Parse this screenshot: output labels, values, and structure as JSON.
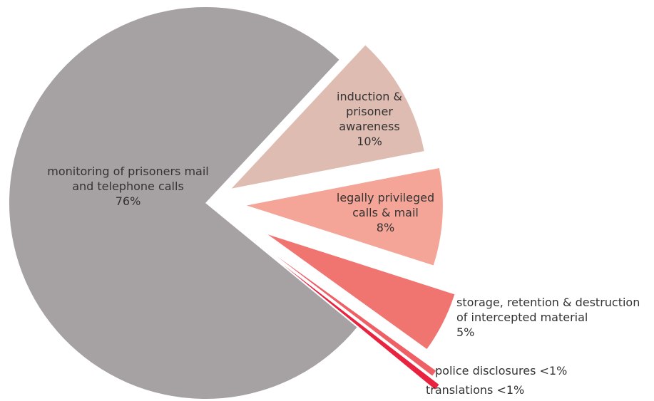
{
  "chart_data": {
    "type": "pie",
    "categories": [
      "monitoring of prisoners mail and telephone calls",
      "induction & prisoner awareness",
      "legally privileged calls & mail",
      "storage, retention & destruction of intercepted material",
      "police disclosures",
      "translations"
    ],
    "values": [
      76,
      10,
      8,
      5,
      0.5,
      0.5
    ],
    "value_labels": [
      "76%",
      "10%",
      "8%",
      "5%",
      "<1%",
      "<1%"
    ],
    "colors": [
      "#a6a1a3",
      "#dfbcb2",
      "#f4a598",
      "#f07571",
      "#ee5f66",
      "#e8223f"
    ]
  }
}
